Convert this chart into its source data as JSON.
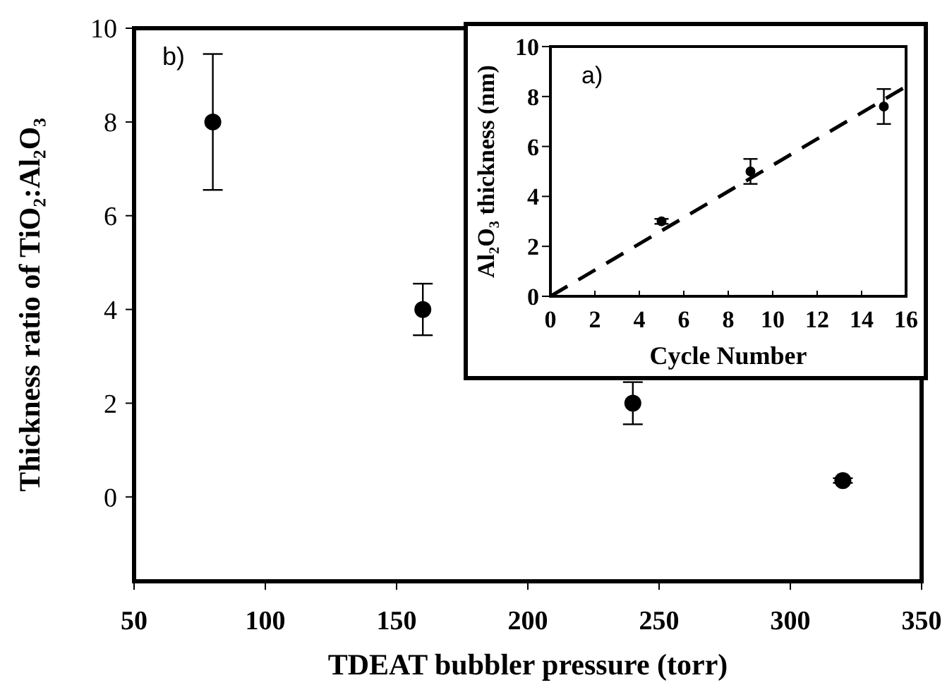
{
  "chart_data": [
    {
      "type": "scatter",
      "xlabel": "TDEAT bubbler pressure (torr)",
      "ylabel": "Thickness ratio of TiO₂:Al₂O₃",
      "annotations": [
        "b)"
      ],
      "xlim": [
        50,
        350
      ],
      "xticks": [
        50,
        100,
        150,
        200,
        250,
        300,
        350
      ],
      "ylim": [
        -1.8,
        10
      ],
      "yticks": [
        0,
        2,
        4,
        6,
        8,
        10
      ],
      "series": [
        {
          "color": "#000000",
          "marker": "circle",
          "x": [
            80,
            160,
            240,
            320
          ],
          "values": [
            8,
            4,
            2,
            0.35
          ],
          "errors": [
            [
              6.55,
              9.45
            ],
            [
              3.45,
              4.55
            ],
            [
              1.55,
              2.45
            ],
            0.05
          ]
        }
      ]
    },
    {
      "type": "scatter",
      "xlabel": "Cycle Number",
      "ylabel": "Al₂O₃ thickness (nm)",
      "annotations": [
        "a)"
      ],
      "xlim": [
        0,
        16
      ],
      "xticks": [
        0,
        2,
        4,
        6,
        8,
        10,
        12,
        14,
        16
      ],
      "ylim": [
        0,
        10
      ],
      "yticks": [
        0,
        2,
        4,
        6,
        8,
        10
      ],
      "series": [
        {
          "color": "#000000",
          "marker": "circle",
          "x": [
            5,
            9,
            15
          ],
          "values": [
            3,
            5,
            7.6
          ],
          "errors": [
            0.1,
            [
              4.5,
              5.5
            ],
            [
              6.9,
              8.3
            ]
          ]
        },
        {
          "type": "line",
          "color": "#000000",
          "line_style": "dashed",
          "marker": "none",
          "x": [
            0,
            16
          ],
          "values": [
            0,
            8.4
          ]
        }
      ]
    }
  ]
}
